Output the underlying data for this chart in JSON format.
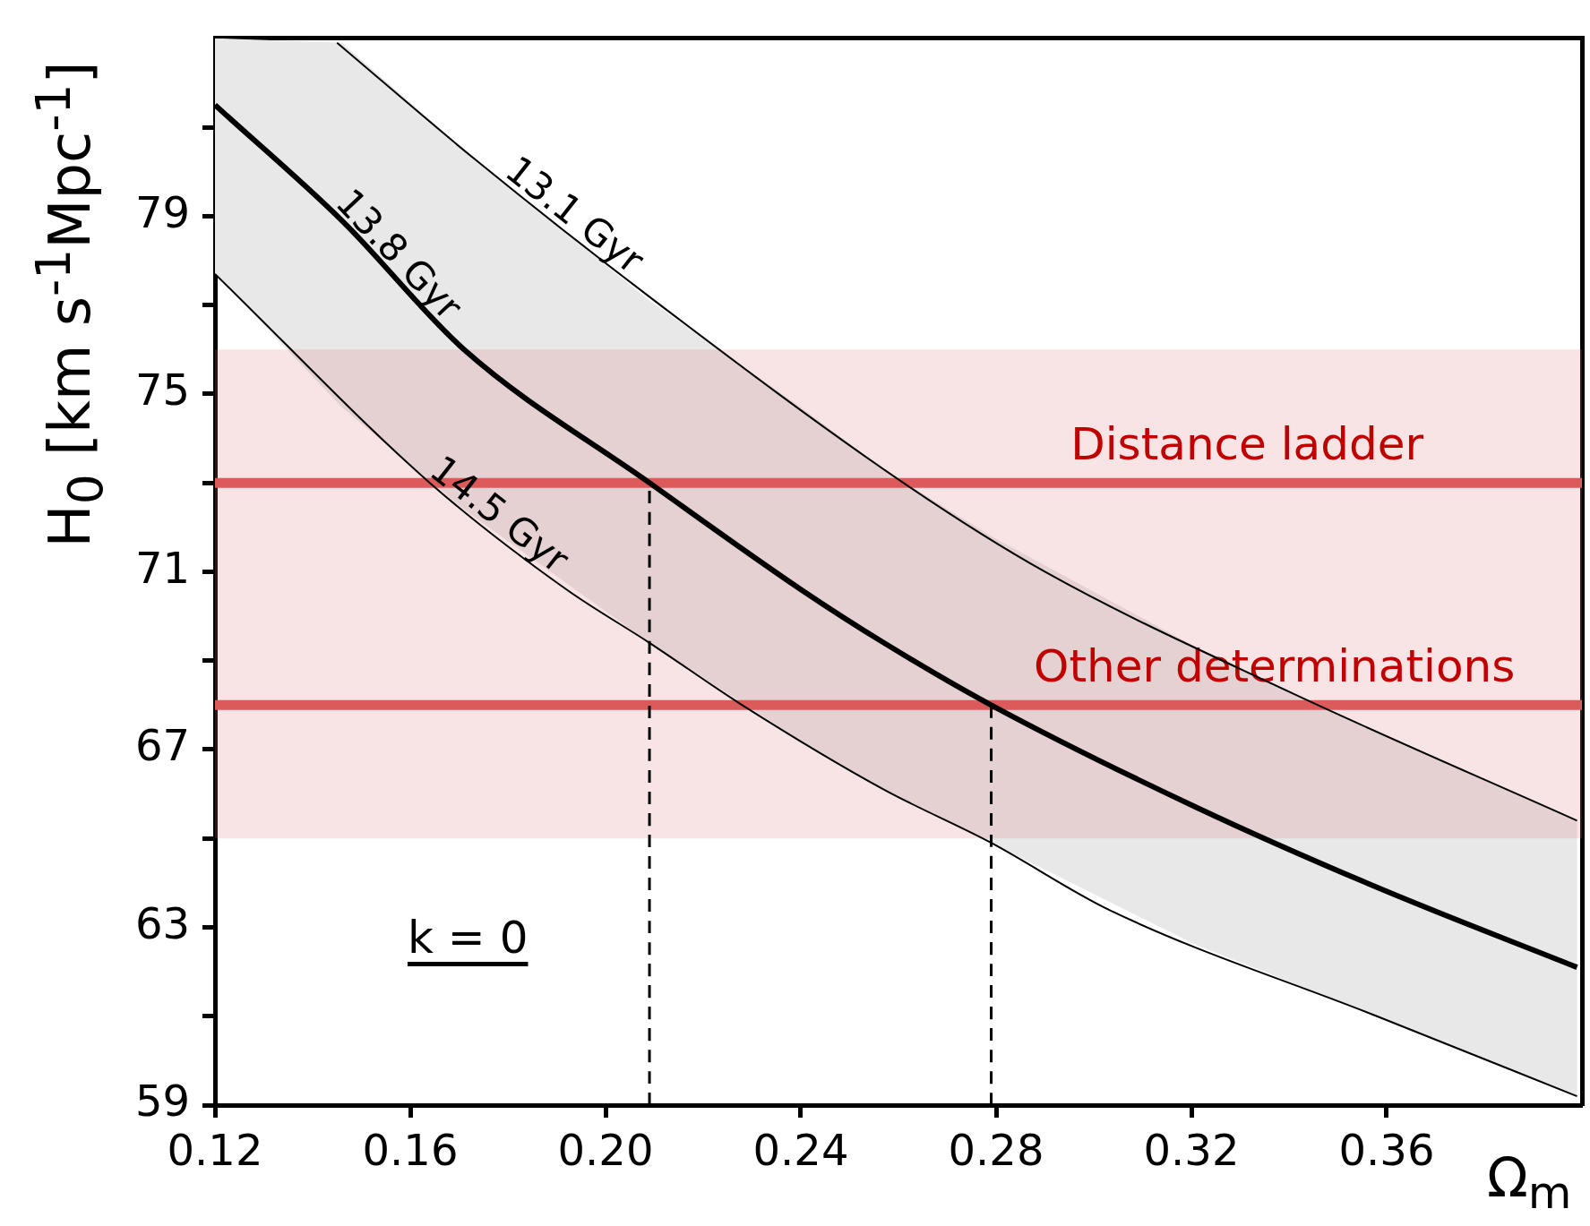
{
  "chart_data": {
    "type": "line",
    "xlabel": "Ω$_{m}$",
    "ylabel": "H$_{0}$ [km s$^{-1}$Mpc$^{-1}$]",
    "xlim": [
      0.12,
      0.4
    ],
    "ylim": [
      59,
      83
    ],
    "xticks": [
      0.12,
      0.16,
      {
        "value": 0.2,
        "label": "0.20"
      },
      0.24,
      0.28,
      0.32,
      0.36
    ],
    "yticks": [
      59,
      {
        "value": 61,
        "label": null
      },
      63,
      {
        "value": 65,
        "label": null
      },
      67,
      {
        "value": 69,
        "label": null
      },
      71,
      {
        "value": 73,
        "label": null
      },
      75,
      {
        "value": 77,
        "label": null
      },
      79,
      {
        "value": 81,
        "label": null
      }
    ],
    "grid": false,
    "legend": false,
    "marker": "none",
    "series": [
      {
        "name": "13.1 Gyr",
        "color": "#000000",
        "x": [
          0.145,
          0.173,
          0.21,
          0.261,
          0.29,
          0.34,
          0.399
        ],
        "values": [
          82.9,
          80.3,
          77.1,
          73.0,
          71.0,
          68.3,
          65.4
        ]
      },
      {
        "name": "13.8 Gyr",
        "color": "#000000",
        "x": [
          0.12,
          0.146,
          0.171,
          0.209,
          0.24,
          0.257,
          0.279,
          0.321,
          0.358,
          0.399
        ],
        "values": [
          81.5,
          78.9,
          76.0,
          73.0,
          70.6,
          69.4,
          68.0,
          65.7,
          63.9,
          62.1
        ],
        "upper": [
          83,
          82.9,
          80.5,
          77.1,
          74.7,
          73.3,
          71.8,
          69.3,
          67.4,
          65.4
        ],
        "lower": [
          77.7,
          74.7,
          72.4,
          69.4,
          67.2,
          66.1,
          64.9,
          62.6,
          61.0,
          59.2
        ]
      },
      {
        "name": "14.5 Gyr",
        "color": "#000000",
        "x": [
          0.12,
          0.164,
          0.192,
          0.209,
          0.228,
          0.257,
          0.279,
          0.303,
          0.358,
          0.399
        ],
        "values": [
          77.7,
          73.0,
          70.6,
          69.4,
          68.0,
          66.1,
          64.9,
          63.4,
          61.0,
          59.2
        ]
      },
      {
        "type": "line",
        "color": "#000000",
        "line_style": "dashed",
        "x": [
          0.209,
          0.209
        ],
        "values": [
          59,
          73
        ]
      },
      {
        "type": "line",
        "color": "#000000",
        "line_style": "dashed",
        "x": [
          0.279,
          0.279
        ],
        "values": [
          59,
          68
        ]
      }
    ],
    "ref_lines": [
      {
        "axis": "y",
        "value": 73,
        "label": "Distance ladder",
        "color": "#dc5a5a"
      },
      {
        "axis": "y",
        "value": 68,
        "label": "Other determinations",
        "color": "#dc5a5a"
      }
    ],
    "bands": [
      {
        "axis": "y",
        "from": 65,
        "to": 76,
        "color": "#f8e4e4"
      }
    ],
    "annotations": [
      "k = 0"
    ]
  }
}
